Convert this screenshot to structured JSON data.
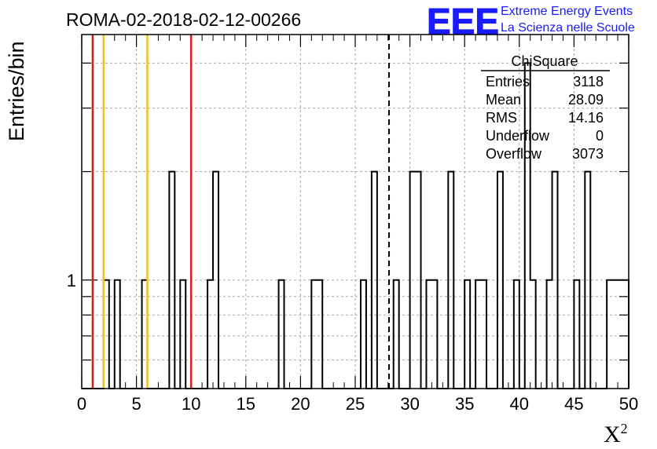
{
  "chart_data": {
    "type": "bar",
    "title": "ROMA-02-2018-02-12-00266",
    "xlabel": "X",
    "xlabel_sup": "2",
    "ylabel": "Entries/bin",
    "xlim": [
      0,
      50
    ],
    "ylog": true,
    "ylim": [
      0.5,
      4.8
    ],
    "bin_width": 0.5,
    "x_ticks": [
      "0",
      "5",
      "10",
      "15",
      "20",
      "25",
      "30",
      "35",
      "40",
      "45",
      "50"
    ],
    "y_tick_labels": [
      {
        "value": 1,
        "label": "1"
      }
    ],
    "grid": true,
    "bins": [
      {
        "x": 2.0,
        "y": 1
      },
      {
        "x": 3.0,
        "y": 1
      },
      {
        "x": 5.5,
        "y": 1
      },
      {
        "x": 8.0,
        "y": 2
      },
      {
        "x": 9.0,
        "y": 1
      },
      {
        "x": 11.5,
        "y": 1
      },
      {
        "x": 12.0,
        "y": 2
      },
      {
        "x": 18.0,
        "y": 1
      },
      {
        "x": 21.0,
        "y": 1
      },
      {
        "x": 21.5,
        "y": 1
      },
      {
        "x": 25.5,
        "y": 1
      },
      {
        "x": 26.5,
        "y": 2
      },
      {
        "x": 28.5,
        "y": 1
      },
      {
        "x": 30.0,
        "y": 2
      },
      {
        "x": 30.5,
        "y": 2
      },
      {
        "x": 31.5,
        "y": 1
      },
      {
        "x": 32.0,
        "y": 1
      },
      {
        "x": 33.5,
        "y": 2
      },
      {
        "x": 35.0,
        "y": 1
      },
      {
        "x": 36.0,
        "y": 1
      },
      {
        "x": 36.5,
        "y": 1
      },
      {
        "x": 38.0,
        "y": 2
      },
      {
        "x": 39.5,
        "y": 1
      },
      {
        "x": 40.5,
        "y": 4
      },
      {
        "x": 41.0,
        "y": 1
      },
      {
        "x": 42.5,
        "y": 1
      },
      {
        "x": 43.0,
        "y": 2
      },
      {
        "x": 45.0,
        "y": 1
      },
      {
        "x": 46.0,
        "y": 2
      },
      {
        "x": 48.0,
        "y": 1
      },
      {
        "x": 48.5,
        "y": 1
      },
      {
        "x": 49.0,
        "y": 1
      },
      {
        "x": 49.5,
        "y": 1
      }
    ],
    "reference_lines": [
      {
        "x": 1.0,
        "color": "#d42020",
        "style": "solid"
      },
      {
        "x": 2.0,
        "color": "#f0c020",
        "style": "solid"
      },
      {
        "x": 6.0,
        "color": "#f0c020",
        "style": "solid"
      },
      {
        "x": 10.0,
        "color": "#d42020",
        "style": "solid"
      },
      {
        "x": 28.09,
        "color": "#000000",
        "style": "dashed"
      }
    ],
    "stats_box": {
      "title": "ChiSquare",
      "rows": [
        {
          "label": "Entries",
          "value": "3118"
        },
        {
          "label": "Mean",
          "value": "28.09"
        },
        {
          "label": "RMS",
          "value": "14.16"
        },
        {
          "label": "Underflow",
          "value": "0"
        },
        {
          "label": "Overflow",
          "value": "3073"
        }
      ],
      "placement": "top-right"
    }
  },
  "logo": {
    "mark": "EEE",
    "line1": "Extreme Energy Events",
    "line2": "La Scienza nelle Scuole",
    "color": "#1a1aff"
  }
}
